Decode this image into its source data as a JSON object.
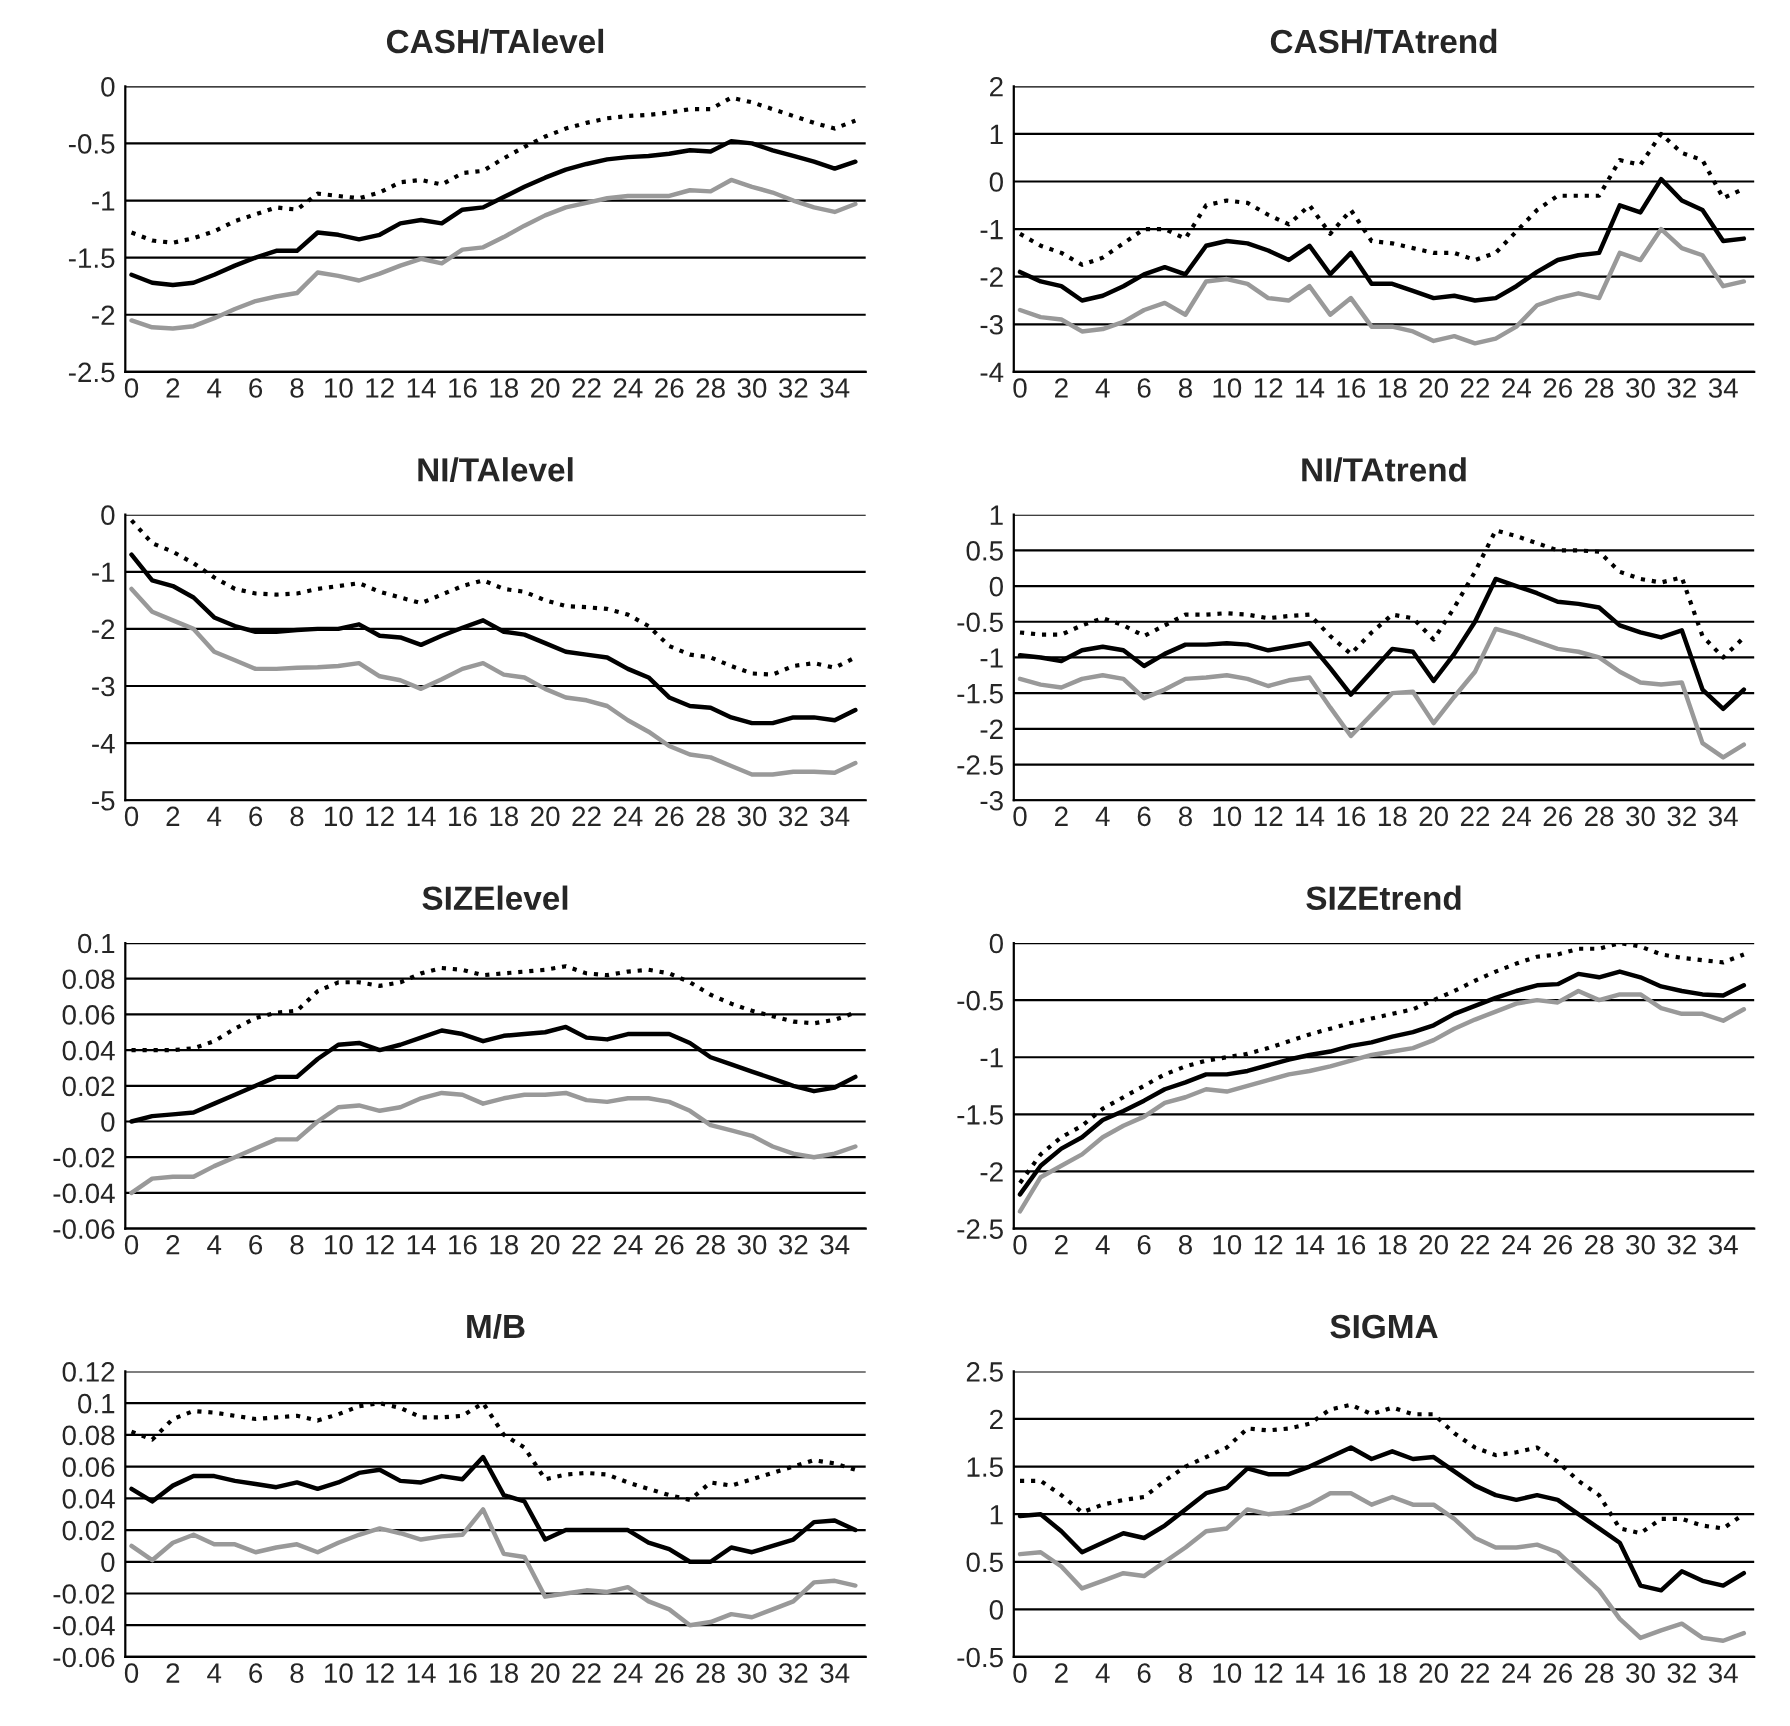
{
  "chart_data": [
    {
      "type": "line",
      "title": "CASH/TAlevel",
      "categories": [
        "0",
        null,
        "2",
        null,
        "4",
        null,
        "6",
        null,
        "8",
        null,
        "10",
        null,
        "12",
        null,
        "14",
        null,
        "16",
        null,
        "18",
        null,
        "20",
        null,
        "22",
        null,
        "24",
        null,
        "26",
        null,
        "28",
        null,
        "30",
        null,
        "32",
        null,
        "34",
        null
      ],
      "ylim": [
        -2.5,
        0
      ],
      "yticks": [
        -2.5,
        -2,
        -1.5,
        -1,
        -0.5,
        0
      ],
      "grid": "y",
      "marker": "none",
      "series": [
        {
          "color": "#000000",
          "line_style": "solid",
          "values": [
            -1.65,
            -1.72,
            -1.74,
            -1.72,
            -1.65,
            -1.57,
            -1.5,
            -1.44,
            -1.44,
            -1.28,
            -1.3,
            -1.34,
            -1.3,
            -1.2,
            -1.17,
            -1.2,
            -1.08,
            -1.06,
            -0.97,
            -0.88,
            -0.8,
            -0.73,
            -0.68,
            -0.64,
            -0.62,
            -0.61,
            -0.59,
            -0.56,
            -0.57,
            -0.48,
            -0.5,
            -0.56,
            -0.61,
            -0.66,
            -0.72,
            -0.66
          ]
        },
        {
          "color": "#999999",
          "line_style": "solid",
          "values": [
            -2.05,
            -2.11,
            -2.12,
            -2.1,
            -2.03,
            -1.95,
            -1.88,
            -1.84,
            -1.81,
            -1.63,
            -1.66,
            -1.7,
            -1.64,
            -1.57,
            -1.51,
            -1.55,
            -1.43,
            -1.41,
            -1.32,
            -1.22,
            -1.13,
            -1.06,
            -1.02,
            -0.98,
            -0.96,
            -0.96,
            -0.96,
            -0.91,
            -0.92,
            -0.82,
            -0.88,
            -0.93,
            -1.0,
            -1.06,
            -1.1,
            -1.03
          ]
        },
        {
          "color": "#000000",
          "line_style": "dotted",
          "values": [
            -1.28,
            -1.35,
            -1.37,
            -1.33,
            -1.27,
            -1.18,
            -1.12,
            -1.06,
            -1.08,
            -0.94,
            -0.96,
            -0.98,
            -0.93,
            -0.84,
            -0.82,
            -0.86,
            -0.76,
            -0.74,
            -0.63,
            -0.53,
            -0.44,
            -0.37,
            -0.32,
            -0.28,
            -0.26,
            -0.25,
            -0.23,
            -0.2,
            -0.2,
            -0.1,
            -0.14,
            -0.2,
            -0.26,
            -0.32,
            -0.37,
            -0.3
          ]
        }
      ]
    },
    {
      "type": "line",
      "title": "CASH/TAtrend",
      "categories": [
        "0",
        null,
        "2",
        null,
        "4",
        null,
        "6",
        null,
        "8",
        null,
        "10",
        null,
        "12",
        null,
        "14",
        null,
        "16",
        null,
        "18",
        null,
        "20",
        null,
        "22",
        null,
        "24",
        null,
        "26",
        null,
        "28",
        null,
        "30",
        null,
        "32",
        null,
        "34",
        null
      ],
      "ylim": [
        -4,
        2
      ],
      "yticks": [
        -4,
        -3,
        -2,
        -1,
        0,
        1,
        2
      ],
      "grid": "y",
      "marker": "none",
      "series": [
        {
          "color": "#000000",
          "line_style": "solid",
          "values": [
            -1.9,
            -2.1,
            -2.2,
            -2.5,
            -2.4,
            -2.2,
            -1.95,
            -1.8,
            -1.95,
            -1.35,
            -1.25,
            -1.3,
            -1.45,
            -1.65,
            -1.35,
            -1.95,
            -1.5,
            -2.15,
            -2.15,
            -2.3,
            -2.45,
            -2.4,
            -2.5,
            -2.45,
            -2.2,
            -1.9,
            -1.65,
            -1.55,
            -1.5,
            -0.5,
            -0.65,
            0.05,
            -0.4,
            -0.6,
            -1.25,
            -1.2
          ]
        },
        {
          "color": "#999999",
          "line_style": "solid",
          "values": [
            -2.7,
            -2.85,
            -2.9,
            -3.15,
            -3.1,
            -2.95,
            -2.7,
            -2.55,
            -2.8,
            -2.1,
            -2.05,
            -2.15,
            -2.45,
            -2.5,
            -2.2,
            -2.8,
            -2.45,
            -3.05,
            -3.05,
            -3.15,
            -3.35,
            -3.25,
            -3.4,
            -3.3,
            -3.05,
            -2.6,
            -2.45,
            -2.35,
            -2.45,
            -1.5,
            -1.65,
            -1.0,
            -1.4,
            -1.55,
            -2.2,
            -2.1
          ]
        },
        {
          "color": "#000000",
          "line_style": "dotted",
          "values": [
            -1.1,
            -1.35,
            -1.5,
            -1.75,
            -1.6,
            -1.3,
            -1.0,
            -1.0,
            -1.2,
            -0.5,
            -0.4,
            -0.45,
            -0.7,
            -0.9,
            -0.5,
            -1.1,
            -0.6,
            -1.25,
            -1.3,
            -1.4,
            -1.5,
            -1.5,
            -1.65,
            -1.5,
            -1.05,
            -0.6,
            -0.3,
            -0.3,
            -0.3,
            0.45,
            0.35,
            1.0,
            0.6,
            0.45,
            -0.35,
            -0.15
          ]
        }
      ]
    },
    {
      "type": "line",
      "title": "NI/TAlevel",
      "categories": [
        "0",
        null,
        "2",
        null,
        "4",
        null,
        "6",
        null,
        "8",
        null,
        "10",
        null,
        "12",
        null,
        "14",
        null,
        "16",
        null,
        "18",
        null,
        "20",
        null,
        "22",
        null,
        "24",
        null,
        "26",
        null,
        "28",
        null,
        "30",
        null,
        "32",
        null,
        "34",
        null
      ],
      "ylim": [
        -5,
        0
      ],
      "yticks": [
        -5,
        -4,
        -3,
        -2,
        -1,
        0
      ],
      "grid": "y",
      "marker": "none",
      "series": [
        {
          "color": "#000000",
          "line_style": "solid",
          "values": [
            -0.7,
            -1.15,
            -1.25,
            -1.45,
            -1.8,
            -1.95,
            -2.05,
            -2.05,
            -2.02,
            -2.0,
            -2.0,
            -1.92,
            -2.12,
            -2.15,
            -2.28,
            -2.12,
            -1.98,
            -1.85,
            -2.05,
            -2.1,
            -2.25,
            -2.4,
            -2.45,
            -2.5,
            -2.7,
            -2.85,
            -3.2,
            -3.35,
            -3.38,
            -3.55,
            -3.65,
            -3.65,
            -3.55,
            -3.55,
            -3.6,
            -3.42
          ]
        },
        {
          "color": "#999999",
          "line_style": "solid",
          "values": [
            -1.3,
            -1.7,
            -1.85,
            -2.0,
            -2.4,
            -2.55,
            -2.7,
            -2.7,
            -2.68,
            -2.67,
            -2.65,
            -2.6,
            -2.83,
            -2.9,
            -3.05,
            -2.88,
            -2.7,
            -2.6,
            -2.8,
            -2.85,
            -3.05,
            -3.2,
            -3.25,
            -3.35,
            -3.6,
            -3.8,
            -4.05,
            -4.2,
            -4.25,
            -4.4,
            -4.55,
            -4.55,
            -4.5,
            -4.5,
            -4.52,
            -4.35
          ]
        },
        {
          "color": "#000000",
          "line_style": "dotted",
          "values": [
            -0.1,
            -0.5,
            -0.65,
            -0.85,
            -1.1,
            -1.3,
            -1.38,
            -1.4,
            -1.38,
            -1.3,
            -1.25,
            -1.2,
            -1.35,
            -1.45,
            -1.55,
            -1.4,
            -1.25,
            -1.15,
            -1.3,
            -1.35,
            -1.5,
            -1.6,
            -1.62,
            -1.65,
            -1.75,
            -1.95,
            -2.3,
            -2.45,
            -2.5,
            -2.65,
            -2.78,
            -2.8,
            -2.65,
            -2.6,
            -2.68,
            -2.5
          ]
        }
      ]
    },
    {
      "type": "line",
      "title": "NI/TAtrend",
      "categories": [
        "0",
        null,
        "2",
        null,
        "4",
        null,
        "6",
        null,
        "8",
        null,
        "10",
        null,
        "12",
        null,
        "14",
        null,
        "16",
        null,
        "18",
        null,
        "20",
        null,
        "22",
        null,
        "24",
        null,
        "26",
        null,
        "28",
        null,
        "30",
        null,
        "32",
        null,
        "34",
        null
      ],
      "ylim": [
        -3,
        1
      ],
      "yticks": [
        -3,
        -2.5,
        -2,
        -1.5,
        -1,
        -0.5,
        0,
        0.5,
        1
      ],
      "grid": "y",
      "marker": "none",
      "series": [
        {
          "color": "#000000",
          "line_style": "solid",
          "values": [
            -0.97,
            -1.0,
            -1.05,
            -0.9,
            -0.85,
            -0.9,
            -1.12,
            -0.95,
            -0.82,
            -0.82,
            -0.8,
            -0.82,
            -0.9,
            -0.85,
            -0.8,
            -1.15,
            -1.52,
            -1.2,
            -0.88,
            -0.92,
            -1.33,
            -0.95,
            -0.5,
            0.1,
            0.0,
            -0.1,
            -0.22,
            -0.25,
            -0.3,
            -0.55,
            -0.65,
            -0.72,
            -0.62,
            -1.45,
            -1.72,
            -1.45
          ]
        },
        {
          "color": "#999999",
          "line_style": "solid",
          "values": [
            -1.3,
            -1.38,
            -1.42,
            -1.3,
            -1.25,
            -1.3,
            -1.57,
            -1.45,
            -1.3,
            -1.28,
            -1.25,
            -1.3,
            -1.4,
            -1.32,
            -1.28,
            -1.7,
            -2.1,
            -1.8,
            -1.5,
            -1.48,
            -1.92,
            -1.55,
            -1.2,
            -0.6,
            -0.68,
            -0.78,
            -0.88,
            -0.92,
            -1.0,
            -1.2,
            -1.35,
            -1.38,
            -1.35,
            -2.2,
            -2.4,
            -2.22
          ]
        },
        {
          "color": "#000000",
          "line_style": "dotted",
          "values": [
            -0.65,
            -0.68,
            -0.68,
            -0.55,
            -0.45,
            -0.55,
            -0.7,
            -0.55,
            -0.4,
            -0.4,
            -0.38,
            -0.4,
            -0.45,
            -0.42,
            -0.4,
            -0.7,
            -0.95,
            -0.65,
            -0.4,
            -0.45,
            -0.75,
            -0.3,
            0.2,
            0.78,
            0.7,
            0.6,
            0.5,
            0.5,
            0.48,
            0.2,
            0.1,
            0.05,
            0.12,
            -0.7,
            -1.0,
            -0.72
          ]
        }
      ]
    },
    {
      "type": "line",
      "title": "SIZElevel",
      "categories": [
        "0",
        null,
        "2",
        null,
        "4",
        null,
        "6",
        null,
        "8",
        null,
        "10",
        null,
        "12",
        null,
        "14",
        null,
        "16",
        null,
        "18",
        null,
        "20",
        null,
        "22",
        null,
        "24",
        null,
        "26",
        null,
        "28",
        null,
        "30",
        null,
        "32",
        null,
        "34",
        null
      ],
      "ylim": [
        -0.06,
        0.1
      ],
      "yticks": [
        -0.06,
        -0.04,
        -0.02,
        0,
        0.02,
        0.04,
        0.06,
        0.08,
        0.1
      ],
      "grid": "y",
      "marker": "none",
      "series": [
        {
          "color": "#000000",
          "line_style": "solid",
          "values": [
            0.0,
            0.003,
            0.004,
            0.005,
            0.01,
            0.015,
            0.02,
            0.025,
            0.025,
            0.035,
            0.043,
            0.044,
            0.04,
            0.043,
            0.047,
            0.051,
            0.049,
            0.045,
            0.048,
            0.049,
            0.05,
            0.053,
            0.047,
            0.046,
            0.049,
            0.049,
            0.049,
            0.044,
            0.036,
            0.032,
            0.028,
            0.024,
            0.02,
            0.017,
            0.019,
            0.025
          ]
        },
        {
          "color": "#999999",
          "line_style": "solid",
          "values": [
            -0.04,
            -0.032,
            -0.031,
            -0.031,
            -0.025,
            -0.02,
            -0.015,
            -0.01,
            -0.01,
            0.0,
            0.008,
            0.009,
            0.006,
            0.008,
            0.013,
            0.016,
            0.015,
            0.01,
            0.013,
            0.015,
            0.015,
            0.016,
            0.012,
            0.011,
            0.013,
            0.013,
            0.011,
            0.006,
            -0.002,
            -0.005,
            -0.008,
            -0.014,
            -0.018,
            -0.02,
            -0.018,
            -0.014
          ]
        },
        {
          "color": "#000000",
          "line_style": "dotted",
          "values": [
            0.04,
            0.04,
            0.04,
            0.041,
            0.045,
            0.052,
            0.058,
            0.061,
            0.062,
            0.073,
            0.078,
            0.078,
            0.076,
            0.078,
            0.083,
            0.086,
            0.085,
            0.082,
            0.083,
            0.084,
            0.085,
            0.087,
            0.083,
            0.082,
            0.084,
            0.085,
            0.083,
            0.078,
            0.071,
            0.066,
            0.062,
            0.059,
            0.056,
            0.055,
            0.057,
            0.061
          ]
        }
      ]
    },
    {
      "type": "line",
      "title": "SIZEtrend",
      "categories": [
        "0",
        null,
        "2",
        null,
        "4",
        null,
        "6",
        null,
        "8",
        null,
        "10",
        null,
        "12",
        null,
        "14",
        null,
        "16",
        null,
        "18",
        null,
        "20",
        null,
        "22",
        null,
        "24",
        null,
        "26",
        null,
        "28",
        null,
        "30",
        null,
        "32",
        null,
        "34",
        null
      ],
      "ylim": [
        -2.5,
        0
      ],
      "yticks": [
        -2.5,
        -2,
        -1.5,
        -1,
        -0.5,
        0
      ],
      "grid": "y",
      "marker": "none",
      "series": [
        {
          "color": "#000000",
          "line_style": "solid",
          "values": [
            -2.2,
            -1.95,
            -1.8,
            -1.7,
            -1.55,
            -1.47,
            -1.38,
            -1.28,
            -1.22,
            -1.15,
            -1.15,
            -1.12,
            -1.07,
            -1.02,
            -0.98,
            -0.95,
            -0.9,
            -0.87,
            -0.82,
            -0.78,
            -0.72,
            -0.62,
            -0.55,
            -0.48,
            -0.42,
            -0.37,
            -0.36,
            -0.27,
            -0.3,
            -0.25,
            -0.3,
            -0.38,
            -0.42,
            -0.45,
            -0.46,
            -0.37
          ]
        },
        {
          "color": "#999999",
          "line_style": "solid",
          "values": [
            -2.35,
            -2.05,
            -1.95,
            -1.85,
            -1.7,
            -1.6,
            -1.52,
            -1.4,
            -1.35,
            -1.28,
            -1.3,
            -1.25,
            -1.2,
            -1.15,
            -1.12,
            -1.08,
            -1.03,
            -0.98,
            -0.95,
            -0.92,
            -0.85,
            -0.75,
            -0.67,
            -0.6,
            -0.53,
            -0.5,
            -0.52,
            -0.42,
            -0.5,
            -0.45,
            -0.45,
            -0.57,
            -0.62,
            -0.62,
            -0.68,
            -0.58
          ]
        },
        {
          "color": "#000000",
          "line_style": "dotted",
          "values": [
            -2.1,
            -1.85,
            -1.7,
            -1.6,
            -1.45,
            -1.35,
            -1.25,
            -1.15,
            -1.08,
            -1.03,
            -1.0,
            -0.97,
            -0.92,
            -0.86,
            -0.8,
            -0.75,
            -0.7,
            -0.66,
            -0.62,
            -0.58,
            -0.5,
            -0.42,
            -0.33,
            -0.25,
            -0.18,
            -0.12,
            -0.1,
            -0.05,
            -0.05,
            0.0,
            -0.03,
            -0.1,
            -0.13,
            -0.15,
            -0.17,
            -0.1
          ]
        }
      ]
    },
    {
      "type": "line",
      "title": "M/B",
      "categories": [
        "0",
        null,
        "2",
        null,
        "4",
        null,
        "6",
        null,
        "8",
        null,
        "10",
        null,
        "12",
        null,
        "14",
        null,
        "16",
        null,
        "18",
        null,
        "20",
        null,
        "22",
        null,
        "24",
        null,
        "26",
        null,
        "28",
        null,
        "30",
        null,
        "32",
        null,
        "34",
        null
      ],
      "ylim": [
        -0.06,
        0.12
      ],
      "yticks": [
        -0.06,
        -0.04,
        -0.02,
        0,
        0.02,
        0.04,
        0.06,
        0.08,
        0.1,
        0.12
      ],
      "grid": "y",
      "marker": "none",
      "series": [
        {
          "color": "#000000",
          "line_style": "solid",
          "values": [
            0.046,
            0.038,
            0.048,
            0.054,
            0.054,
            0.051,
            0.049,
            0.047,
            0.05,
            0.046,
            0.05,
            0.056,
            0.058,
            0.051,
            0.05,
            0.054,
            0.052,
            0.066,
            0.042,
            0.038,
            0.014,
            0.02,
            0.02,
            0.02,
            0.02,
            0.012,
            0.008,
            0.0,
            0.0,
            0.009,
            0.006,
            0.01,
            0.014,
            0.025,
            0.026,
            0.02
          ]
        },
        {
          "color": "#999999",
          "line_style": "solid",
          "values": [
            0.01,
            0.001,
            0.012,
            0.017,
            0.011,
            0.011,
            0.006,
            0.009,
            0.011,
            0.006,
            0.012,
            0.017,
            0.021,
            0.018,
            0.014,
            0.016,
            0.017,
            0.033,
            0.005,
            0.003,
            -0.022,
            -0.02,
            -0.018,
            -0.019,
            -0.016,
            -0.025,
            -0.03,
            -0.04,
            -0.038,
            -0.033,
            -0.035,
            -0.03,
            -0.025,
            -0.013,
            -0.012,
            -0.015
          ]
        },
        {
          "color": "#000000",
          "line_style": "dotted",
          "values": [
            0.082,
            0.077,
            0.09,
            0.095,
            0.094,
            0.092,
            0.09,
            0.091,
            0.092,
            0.089,
            0.093,
            0.098,
            0.1,
            0.097,
            0.091,
            0.091,
            0.092,
            0.1,
            0.08,
            0.072,
            0.052,
            0.055,
            0.056,
            0.055,
            0.05,
            0.046,
            0.042,
            0.039,
            0.05,
            0.048,
            0.052,
            0.056,
            0.06,
            0.064,
            0.062,
            0.058
          ]
        }
      ]
    },
    {
      "type": "line",
      "title": "SIGMA",
      "categories": [
        "0",
        null,
        "2",
        null,
        "4",
        null,
        "6",
        null,
        "8",
        null,
        "10",
        null,
        "12",
        null,
        "14",
        null,
        "16",
        null,
        "18",
        null,
        "20",
        null,
        "22",
        null,
        "24",
        null,
        "26",
        null,
        "28",
        null,
        "30",
        null,
        "32",
        null,
        "34",
        null
      ],
      "ylim": [
        -0.5,
        2.5
      ],
      "yticks": [
        -0.5,
        0,
        0.5,
        1,
        1.5,
        2,
        2.5
      ],
      "grid": "y",
      "marker": "none",
      "series": [
        {
          "color": "#000000",
          "line_style": "solid",
          "values": [
            0.98,
            1.0,
            0.82,
            0.6,
            0.7,
            0.8,
            0.75,
            0.88,
            1.05,
            1.22,
            1.28,
            1.48,
            1.42,
            1.42,
            1.5,
            1.6,
            1.7,
            1.58,
            1.66,
            1.58,
            1.6,
            1.45,
            1.3,
            1.2,
            1.15,
            1.2,
            1.15,
            1.0,
            0.85,
            0.7,
            0.25,
            0.2,
            0.4,
            0.3,
            0.25,
            0.38
          ]
        },
        {
          "color": "#999999",
          "line_style": "solid",
          "values": [
            0.58,
            0.6,
            0.45,
            0.22,
            0.3,
            0.38,
            0.35,
            0.5,
            0.65,
            0.82,
            0.85,
            1.05,
            1.0,
            1.02,
            1.1,
            1.22,
            1.22,
            1.1,
            1.18,
            1.1,
            1.1,
            0.95,
            0.75,
            0.65,
            0.65,
            0.68,
            0.6,
            0.4,
            0.2,
            -0.1,
            -0.3,
            -0.22,
            -0.15,
            -0.3,
            -0.33,
            -0.25
          ]
        },
        {
          "color": "#000000",
          "line_style": "dotted",
          "values": [
            1.35,
            1.35,
            1.2,
            1.02,
            1.1,
            1.15,
            1.18,
            1.35,
            1.5,
            1.6,
            1.7,
            1.9,
            1.88,
            1.9,
            1.95,
            2.1,
            2.15,
            2.05,
            2.12,
            2.05,
            2.05,
            1.85,
            1.7,
            1.62,
            1.65,
            1.7,
            1.55,
            1.35,
            1.2,
            0.85,
            0.8,
            0.95,
            0.95,
            0.88,
            0.85,
            1.0
          ]
        }
      ]
    }
  ]
}
